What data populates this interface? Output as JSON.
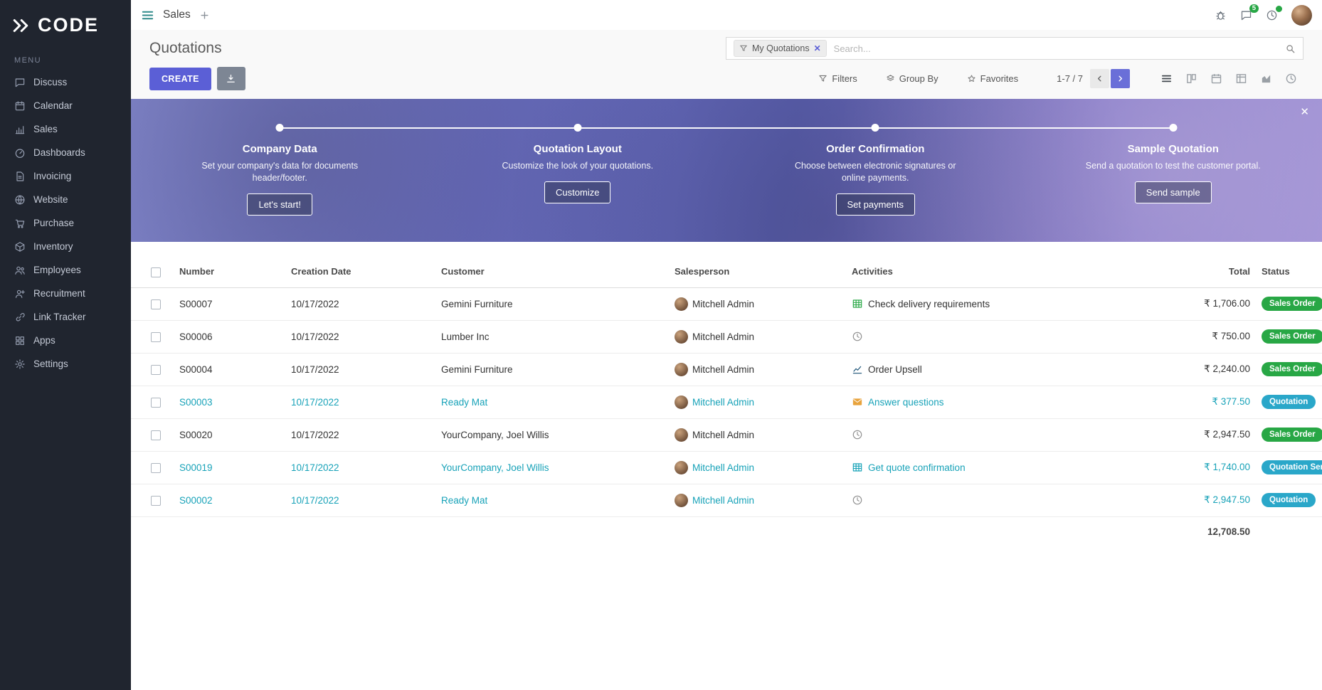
{
  "brand": {
    "name": "CODE"
  },
  "topbar": {
    "app_label": "Sales",
    "messages_badge": "5"
  },
  "sidebar": {
    "menu_label": "MENU",
    "items": [
      {
        "label": "Discuss",
        "icon": "discuss"
      },
      {
        "label": "Calendar",
        "icon": "calendar"
      },
      {
        "label": "Sales",
        "icon": "sales"
      },
      {
        "label": "Dashboards",
        "icon": "dashboards"
      },
      {
        "label": "Invoicing",
        "icon": "invoicing"
      },
      {
        "label": "Website",
        "icon": "website"
      },
      {
        "label": "Purchase",
        "icon": "purchase"
      },
      {
        "label": "Inventory",
        "icon": "inventory"
      },
      {
        "label": "Employees",
        "icon": "employees"
      },
      {
        "label": "Recruitment",
        "icon": "recruitment"
      },
      {
        "label": "Link Tracker",
        "icon": "link"
      },
      {
        "label": "Apps",
        "icon": "apps"
      },
      {
        "label": "Settings",
        "icon": "settings"
      }
    ]
  },
  "control_panel": {
    "title": "Quotations",
    "search": {
      "facet_label": "My Quotations",
      "placeholder": "Search..."
    },
    "buttons": {
      "create": "CREATE",
      "filters": "Filters",
      "group_by": "Group By",
      "favorites": "Favorites"
    },
    "pager": {
      "text": "1-7 / 7"
    }
  },
  "banner": {
    "steps": [
      {
        "title": "Company Data",
        "desc": "Set your company's data for documents header/footer.",
        "button": "Let's start!"
      },
      {
        "title": "Quotation Layout",
        "desc": "Customize the look of your quotations.",
        "button": "Customize"
      },
      {
        "title": "Order Confirmation",
        "desc": "Choose between electronic signatures or online payments.",
        "button": "Set payments"
      },
      {
        "title": "Sample Quotation",
        "desc": "Send a quotation to test the customer portal.",
        "button": "Send sample"
      }
    ]
  },
  "table": {
    "columns": [
      "Number",
      "Creation Date",
      "Customer",
      "Salesperson",
      "Activities",
      "Total",
      "Status"
    ],
    "rows": [
      {
        "number": "S00007",
        "creation_date": "10/17/2022",
        "customer": "Gemini Furniture",
        "salesperson": "Mitchell Admin",
        "activity": {
          "icon": "spreadsheet",
          "label": "Check delivery requirements",
          "color": "#28a745"
        },
        "total": "₹ 1,706.00",
        "status": "Sales Order",
        "status_type": "success",
        "highlighted": false
      },
      {
        "number": "S00006",
        "creation_date": "10/17/2022",
        "customer": "Lumber Inc",
        "salesperson": "Mitchell Admin",
        "activity": {
          "icon": "clock",
          "label": "",
          "color": "#8f8f8f"
        },
        "total": "₹ 750.00",
        "status": "Sales Order",
        "status_type": "success",
        "highlighted": false
      },
      {
        "number": "S00004",
        "creation_date": "10/17/2022",
        "customer": "Gemini Furniture",
        "salesperson": "Mitchell Admin",
        "activity": {
          "icon": "line-chart",
          "label": "Order Upsell",
          "color": "#1a5276"
        },
        "total": "₹ 2,240.00",
        "status": "Sales Order",
        "status_type": "success",
        "highlighted": false
      },
      {
        "number": "S00003",
        "creation_date": "10/17/2022",
        "customer": "Ready Mat",
        "salesperson": "Mitchell Admin",
        "activity": {
          "icon": "envelope",
          "label": "Answer questions",
          "color": "#e8a33d"
        },
        "total": "₹ 377.50",
        "status": "Quotation",
        "status_type": "info",
        "highlighted": true
      },
      {
        "number": "S00020",
        "creation_date": "10/17/2022",
        "customer": "YourCompany, Joel Willis",
        "salesperson": "Mitchell Admin",
        "activity": {
          "icon": "clock",
          "label": "",
          "color": "#8f8f8f"
        },
        "total": "₹ 2,947.50",
        "status": "Sales Order",
        "status_type": "success",
        "highlighted": false
      },
      {
        "number": "S00019",
        "creation_date": "10/17/2022",
        "customer": "YourCompany, Joel Willis",
        "salesperson": "Mitchell Admin",
        "activity": {
          "icon": "spreadsheet",
          "label": "Get quote confirmation",
          "color": "#17a2b8"
        },
        "total": "₹ 1,740.00",
        "status": "Quotation Sent",
        "status_type": "info",
        "highlighted": true
      },
      {
        "number": "S00002",
        "creation_date": "10/17/2022",
        "customer": "Ready Mat",
        "salesperson": "Mitchell Admin",
        "activity": {
          "icon": "clock",
          "label": "",
          "color": "#8f8f8f"
        },
        "total": "₹ 2,947.50",
        "status": "Quotation",
        "status_type": "info",
        "highlighted": true
      }
    ],
    "footer_total": "12,708.50"
  },
  "colors": {
    "accent": "#5b5fd6",
    "sidebar_bg": "#20252f",
    "highlight_row": "#17a2b8",
    "badge_success": "#28a745",
    "badge_info": "#2aa7c9",
    "banner_purple": "#6d71c4",
    "topbar_badge_green": "#28a745"
  }
}
